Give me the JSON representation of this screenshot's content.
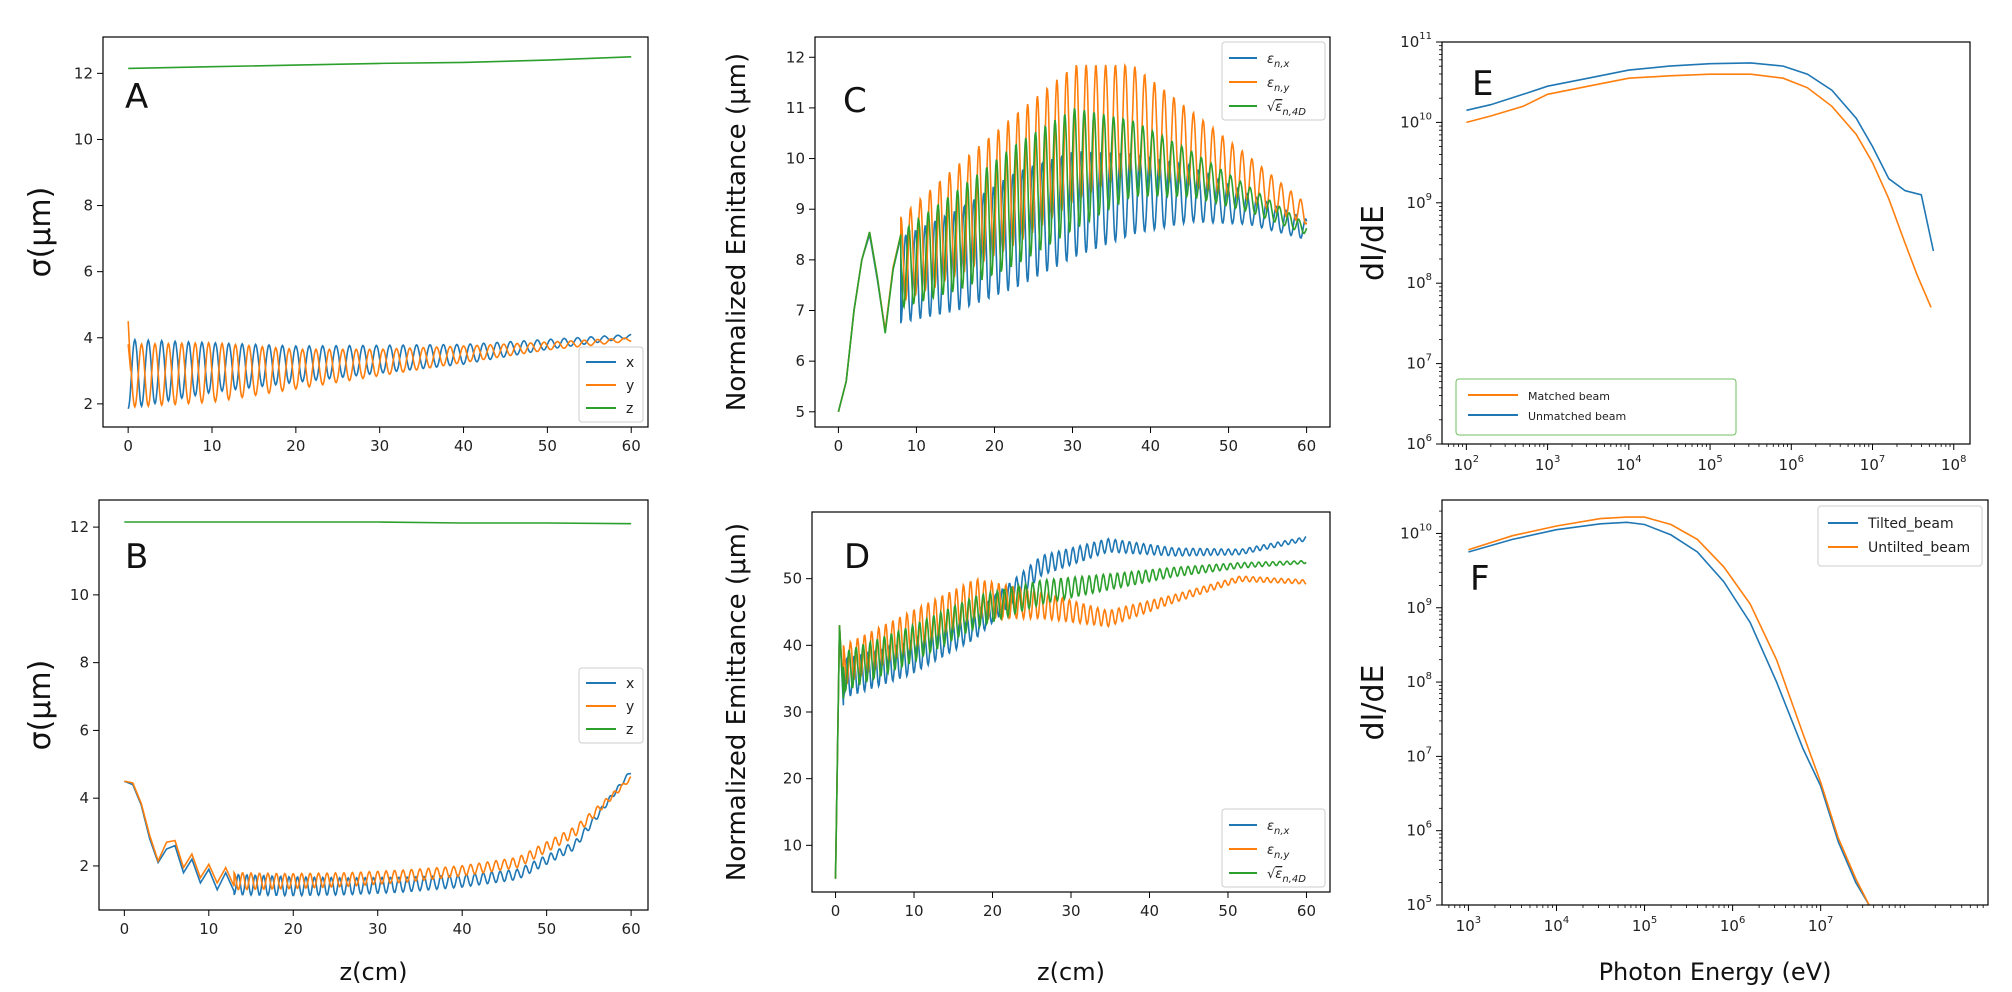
{
  "colors": {
    "blue": "#1f77b4",
    "orange": "#ff7f0e",
    "green": "#2ca02c"
  },
  "chart_data": [
    {
      "id": "A",
      "type": "line",
      "panel_label": "A",
      "xlabel": "",
      "ylabel": "σ(μm)",
      "xlim": [
        -3,
        62
      ],
      "ylim": [
        1.3,
        13.1
      ],
      "xticks": [
        0,
        10,
        20,
        30,
        40,
        50,
        60
      ],
      "yticks": [
        2,
        4,
        6,
        8,
        10,
        12
      ],
      "legend_position": "lower-right",
      "series": [
        {
          "name": "x",
          "color": "blue",
          "osc": {
            "start": 0,
            "end": 60,
            "base": [
              2.9,
              3.1,
              3.2,
              3.35,
              3.5,
              3.8,
              4.05
            ],
            "amp": [
              1.05,
              0.75,
              0.55,
              0.42,
              0.3,
              0.15,
              0.05
            ],
            "period": 1.6,
            "phase": 3.14
          }
        },
        {
          "name": "y",
          "color": "orange",
          "osc": {
            "start": 0,
            "end": 60,
            "base": [
              2.85,
              2.95,
              3.05,
              3.25,
              3.5,
              3.75,
              3.95
            ],
            "amp": [
              0.95,
              0.9,
              0.6,
              0.4,
              0.25,
              0.12,
              0.05
            ],
            "period": 1.6,
            "phase": 0
          },
          "prefix": [
            [
              0,
              4.5
            ],
            [
              0.3,
              3.0
            ]
          ]
        },
        {
          "name": "z",
          "color": "green",
          "points": [
            [
              0,
              12.15
            ],
            [
              10,
              12.2
            ],
            [
              20,
              12.25
            ],
            [
              30,
              12.3
            ],
            [
              40,
              12.33
            ],
            [
              50,
              12.4
            ],
            [
              60,
              12.5
            ]
          ]
        }
      ]
    },
    {
      "id": "B",
      "type": "line",
      "panel_label": "B",
      "xlabel": "z(cm)",
      "ylabel": "σ(μm)",
      "xlim": [
        -3,
        62
      ],
      "ylim": [
        0.7,
        12.8
      ],
      "xticks": [
        0,
        10,
        20,
        30,
        40,
        50,
        60
      ],
      "yticks": [
        2,
        4,
        6,
        8,
        10,
        12
      ],
      "legend_position": "center-right",
      "series": [
        {
          "name": "x",
          "color": "blue",
          "points": [
            [
              0,
              4.5
            ],
            [
              1,
              4.4
            ],
            [
              2,
              3.8
            ],
            [
              3,
              2.8
            ],
            [
              4,
              2.1
            ],
            [
              5,
              2.5
            ],
            [
              6,
              2.6
            ],
            [
              7,
              1.8
            ],
            [
              8,
              2.2
            ],
            [
              9,
              1.5
            ],
            [
              10,
              1.9
            ],
            [
              11,
              1.3
            ],
            [
              12,
              1.8
            ],
            [
              13,
              1.25
            ]
          ],
          "osc": {
            "start": 13,
            "end": 60,
            "base": [
              1.45,
              1.4,
              1.4,
              1.45,
              1.55,
              1.75,
              2.6,
              4.8
            ],
            "amp": [
              0.3,
              0.28,
              0.25,
              0.22,
              0.18,
              0.15,
              0.12,
              0.05
            ],
            "period": 1.0,
            "phase": 3.14
          }
        },
        {
          "name": "y",
          "color": "orange",
          "points": [
            [
              0,
              4.5
            ],
            [
              1,
              4.45
            ],
            [
              2,
              3.85
            ],
            [
              3,
              2.9
            ],
            [
              4,
              2.15
            ],
            [
              5,
              2.7
            ],
            [
              6,
              2.75
            ],
            [
              7,
              1.95
            ],
            [
              8,
              2.35
            ],
            [
              9,
              1.65
            ],
            [
              10,
              2.05
            ],
            [
              11,
              1.5
            ],
            [
              12,
              1.95
            ],
            [
              13,
              1.4
            ]
          ],
          "osc": {
            "start": 13,
            "end": 60,
            "base": [
              1.55,
              1.55,
              1.6,
              1.7,
              1.85,
              2.1,
              3.0,
              4.6
            ],
            "amp": [
              0.25,
              0.22,
              0.2,
              0.18,
              0.15,
              0.15,
              0.15,
              0.05
            ],
            "period": 1.0,
            "phase": 0
          }
        },
        {
          "name": "z",
          "color": "green",
          "points": [
            [
              0,
              12.15
            ],
            [
              20,
              12.15
            ],
            [
              30,
              12.15
            ],
            [
              40,
              12.12
            ],
            [
              50,
              12.12
            ],
            [
              60,
              12.1
            ]
          ]
        }
      ]
    },
    {
      "id": "C",
      "type": "line",
      "panel_label": "C",
      "xlabel": "",
      "ylabel": "Normalized Emittance (μm)",
      "xlim": [
        -3,
        63
      ],
      "ylim": [
        4.7,
        12.4
      ],
      "xticks": [
        0,
        10,
        20,
        30,
        40,
        50,
        60
      ],
      "yticks": [
        5,
        6,
        7,
        8,
        9,
        10,
        11,
        12
      ],
      "legend_position": "top-right",
      "series": [
        {
          "name": "εn,x",
          "color": "blue",
          "points": [
            [
              0,
              5.0
            ],
            [
              1,
              5.6
            ],
            [
              2,
              7.0
            ],
            [
              3,
              8.0
            ],
            [
              4,
              8.5
            ],
            [
              5,
              7.6
            ],
            [
              6,
              6.6
            ],
            [
              7,
              7.8
            ],
            [
              8,
              8.45
            ]
          ],
          "osc": {
            "start": 8,
            "end": 60,
            "base": [
              7.6,
              8.0,
              8.6,
              9.1,
              9.3,
              9.3,
              9.0,
              8.6
            ],
            "amp": [
              0.85,
              1.0,
              1.15,
              1.05,
              0.8,
              0.55,
              0.3,
              0.2
            ],
            "period": 1.25,
            "phase": 3.14
          }
        },
        {
          "name": "εn,y",
          "color": "orange",
          "points": [
            [
              0,
              5.0
            ],
            [
              1,
              5.6
            ],
            [
              2,
              7.0
            ],
            [
              3,
              8.0
            ],
            [
              4,
              8.55
            ],
            [
              5,
              7.65
            ],
            [
              6,
              6.6
            ],
            [
              7,
              7.85
            ],
            [
              8,
              8.5
            ]
          ],
          "osc": {
            "start": 8,
            "end": 60,
            "base": [
              8.0,
              8.8,
              9.6,
              10.5,
              10.8,
              10.2,
              9.6,
              8.9
            ],
            "amp": [
              0.85,
              1.1,
              1.3,
              1.35,
              1.05,
              0.75,
              0.45,
              0.2
            ],
            "period": 1.25,
            "phase": 0
          }
        },
        {
          "name": "√εn,4D",
          "color": "green",
          "points": [
            [
              0,
              5.0
            ],
            [
              1,
              5.6
            ],
            [
              2,
              7.0
            ],
            [
              3,
              8.0
            ],
            [
              4,
              8.55
            ],
            [
              5,
              7.65
            ],
            [
              6,
              6.55
            ],
            [
              7,
              7.8
            ],
            [
              8,
              8.5
            ]
          ],
          "osc": {
            "start": 8,
            "end": 60,
            "base": [
              7.8,
              8.4,
              9.1,
              9.8,
              10.0,
              9.7,
              9.2,
              8.6
            ],
            "amp": [
              0.75,
              1.0,
              1.2,
              1.2,
              0.75,
              0.45,
              0.25,
              0.1
            ],
            "period": 1.25,
            "phase": 1.2
          }
        }
      ]
    },
    {
      "id": "D",
      "type": "line",
      "panel_label": "D",
      "xlabel": "z(cm)",
      "ylabel": "Normalized Emittance (μm)",
      "xlim": [
        -3,
        63
      ],
      "ylim": [
        3,
        60
      ],
      "xticks": [
        0,
        10,
        20,
        30,
        40,
        50,
        60
      ],
      "yticks": [
        10,
        20,
        30,
        40,
        50
      ],
      "legend_position": "lower-right",
      "series": [
        {
          "name": "εn,x",
          "color": "blue",
          "points": [
            [
              0,
              5
            ],
            [
              0.5,
              43
            ],
            [
              1,
              31
            ]
          ],
          "osc": {
            "start": 1,
            "end": 60,
            "base": [
              35,
              38,
              43,
              52,
              55,
              54,
              54,
              56
            ],
            "amp": [
              3,
              2.5,
              2,
              1.5,
              1.0,
              0.6,
              0.4,
              0.3
            ],
            "period": 0.9,
            "phase": 3.14
          }
        },
        {
          "name": "εn,y",
          "color": "orange",
          "points": [
            [
              0,
              5
            ],
            [
              0.5,
              43
            ],
            [
              1,
              33
            ]
          ],
          "osc": {
            "start": 1,
            "end": 60,
            "base": [
              37,
              42,
              47,
              46,
              44,
              47,
              50,
              49.5
            ],
            "amp": [
              3,
              3,
              3,
              2,
              1.2,
              0.6,
              0.4,
              0.3
            ],
            "period": 0.9,
            "phase": 0
          }
        },
        {
          "name": "√εn,4D",
          "color": "green",
          "points": [
            [
              0,
              5
            ],
            [
              0.5,
              43
            ],
            [
              1,
              32
            ]
          ],
          "osc": {
            "start": 1,
            "end": 60,
            "base": [
              36,
              40,
              45,
              48,
              49.5,
              51,
              52,
              52.5
            ],
            "amp": [
              3,
              2.8,
              2.4,
              1.8,
              1.2,
              0.7,
              0.4,
              0.2
            ],
            "period": 0.9,
            "phase": 1.3
          }
        }
      ]
    },
    {
      "id": "E",
      "type": "line",
      "panel_label": "E",
      "xscale": "log",
      "yscale": "log",
      "xlabel": "",
      "ylabel": "dI/dE",
      "xlim_log10": [
        1.7,
        8.2
      ],
      "ylim_log10": [
        6,
        11
      ],
      "xticks_log10": [
        2,
        3,
        4,
        5,
        6,
        7,
        8
      ],
      "yticks_log10": [
        6,
        7,
        8,
        9,
        10,
        11
      ],
      "legend_position": "lower-left",
      "series": [
        {
          "name": "Unmatched beam",
          "color": "blue",
          "log_points": [
            [
              2.0,
              10.15
            ],
            [
              2.3,
              10.22
            ],
            [
              2.7,
              10.35
            ],
            [
              3.0,
              10.45
            ],
            [
              3.5,
              10.55
            ],
            [
              4.0,
              10.65
            ],
            [
              4.5,
              10.7
            ],
            [
              5.0,
              10.73
            ],
            [
              5.5,
              10.74
            ],
            [
              5.9,
              10.7
            ],
            [
              6.2,
              10.6
            ],
            [
              6.5,
              10.4
            ],
            [
              6.8,
              10.05
            ],
            [
              7.0,
              9.7
            ],
            [
              7.2,
              9.3
            ],
            [
              7.4,
              9.15
            ],
            [
              7.6,
              9.1
            ],
            [
              7.75,
              8.4
            ]
          ]
        },
        {
          "name": "Matched beam",
          "color": "orange",
          "log_points": [
            [
              2.0,
              10.0
            ],
            [
              2.3,
              10.08
            ],
            [
              2.7,
              10.2
            ],
            [
              3.0,
              10.35
            ],
            [
              3.5,
              10.45
            ],
            [
              4.0,
              10.55
            ],
            [
              4.5,
              10.58
            ],
            [
              5.0,
              10.6
            ],
            [
              5.5,
              10.6
            ],
            [
              5.9,
              10.55
            ],
            [
              6.2,
              10.43
            ],
            [
              6.5,
              10.2
            ],
            [
              6.8,
              9.85
            ],
            [
              7.0,
              9.5
            ],
            [
              7.2,
              9.05
            ],
            [
              7.4,
              8.5
            ],
            [
              7.55,
              8.1
            ],
            [
              7.72,
              7.7
            ]
          ]
        }
      ]
    },
    {
      "id": "F",
      "type": "line",
      "panel_label": "F",
      "xscale": "log",
      "yscale": "log",
      "xlabel": "Photon Energy (eV)",
      "ylabel": "dI/dE",
      "xlim_log10": [
        2.7,
        8.9
      ],
      "ylim_log10": [
        5,
        10.45
      ],
      "xticks_log10": [
        3,
        4,
        5,
        6,
        7
      ],
      "yticks_log10": [
        5,
        6,
        7,
        8,
        9,
        10
      ],
      "legend_position": "top-right",
      "series": [
        {
          "name": "Tilted_beam",
          "color": "blue",
          "log_points": [
            [
              3.0,
              9.75
            ],
            [
              3.5,
              9.92
            ],
            [
              4.0,
              10.05
            ],
            [
              4.5,
              10.13
            ],
            [
              4.8,
              10.15
            ],
            [
              5.0,
              10.12
            ],
            [
              5.3,
              9.98
            ],
            [
              5.6,
              9.75
            ],
            [
              5.9,
              9.35
            ],
            [
              6.2,
              8.8
            ],
            [
              6.5,
              8.0
            ],
            [
              6.8,
              7.1
            ],
            [
              7.0,
              6.6
            ],
            [
              7.2,
              5.85
            ],
            [
              7.4,
              5.3
            ],
            [
              7.55,
              5.0
            ]
          ]
        },
        {
          "name": "Untilted_beam",
          "color": "orange",
          "log_points": [
            [
              3.0,
              9.78
            ],
            [
              3.5,
              9.97
            ],
            [
              4.0,
              10.1
            ],
            [
              4.5,
              10.2
            ],
            [
              4.8,
              10.22
            ],
            [
              5.0,
              10.22
            ],
            [
              5.3,
              10.12
            ],
            [
              5.6,
              9.92
            ],
            [
              5.9,
              9.55
            ],
            [
              6.2,
              9.05
            ],
            [
              6.5,
              8.3
            ],
            [
              6.8,
              7.3
            ],
            [
              7.0,
              6.65
            ],
            [
              7.2,
              5.9
            ],
            [
              7.4,
              5.35
            ],
            [
              7.55,
              5.0
            ]
          ]
        }
      ]
    }
  ]
}
